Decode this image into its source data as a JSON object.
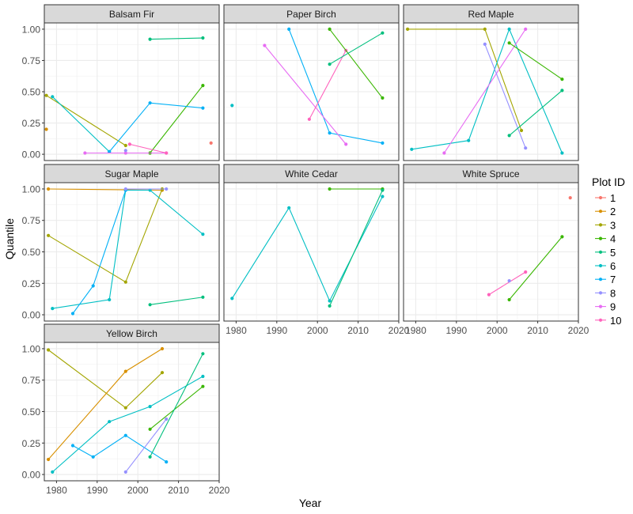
{
  "chart_data": {
    "type": "line",
    "facet_by": "species",
    "xlabel": "Year",
    "ylabel": "Quantile",
    "xlim": [
      1977,
      2020
    ],
    "ylim": [
      -0.05,
      1.05
    ],
    "x_ticks": [
      1980,
      1990,
      2000,
      2010,
      2020
    ],
    "y_ticks": [
      0.0,
      0.25,
      0.5,
      0.75,
      1.0
    ],
    "y_tick_labels": [
      "0.00",
      "0.25",
      "0.50",
      "0.75",
      "1.00"
    ],
    "grid": true,
    "legend": {
      "title": "Plot ID",
      "position": "right",
      "entries": [
        {
          "id": "1",
          "color": "#F8766D"
        },
        {
          "id": "2",
          "color": "#D89000"
        },
        {
          "id": "3",
          "color": "#A3A500"
        },
        {
          "id": "4",
          "color": "#39B600"
        },
        {
          "id": "5",
          "color": "#00BF7D"
        },
        {
          "id": "6",
          "color": "#00BFC4"
        },
        {
          "id": "7",
          "color": "#00B0F6"
        },
        {
          "id": "8",
          "color": "#9590FF"
        },
        {
          "id": "9",
          "color": "#E76BF3"
        },
        {
          "id": "10",
          "color": "#FF62BC"
        }
      ]
    },
    "panels": [
      {
        "title": "Balsam Fir",
        "series": [
          {
            "plot": "2",
            "points": [
              [
                1977.5,
                0.2
              ]
            ]
          },
          {
            "plot": "3",
            "points": [
              [
                1977.5,
                0.47
              ],
              [
                1997,
                0.07
              ]
            ]
          },
          {
            "plot": "4",
            "points": [
              [
                2003,
                0.01
              ],
              [
                2016,
                0.55
              ]
            ]
          },
          {
            "plot": "5",
            "points": [
              [
                2003,
                0.92
              ],
              [
                2016,
                0.93
              ]
            ]
          },
          {
            "plot": "6",
            "points": [
              [
                1979,
                0.46
              ],
              [
                1993,
                0.02
              ]
            ]
          },
          {
            "plot": "7",
            "points": [
              [
                1993,
                0.02
              ],
              [
                2003,
                0.41
              ],
              [
                2016,
                0.37
              ]
            ]
          },
          {
            "plot": "9",
            "points": [
              [
                1987,
                0.01
              ],
              [
                1997,
                0.01
              ],
              [
                2007,
                0.01
              ]
            ]
          },
          {
            "plot": "8",
            "points": [
              [
                1997,
                0.03
              ]
            ]
          },
          {
            "plot": "10",
            "points": [
              [
                1998,
                0.08
              ],
              [
                2007,
                0.01
              ]
            ]
          },
          {
            "plot": "1",
            "points": [
              [
                2018,
                0.09
              ]
            ]
          }
        ]
      },
      {
        "title": "Paper Birch",
        "series": [
          {
            "plot": "6",
            "points": [
              [
                1979,
                0.39
              ]
            ]
          },
          {
            "plot": "7",
            "points": [
              [
                1993,
                1.0
              ],
              [
                2003,
                0.17
              ],
              [
                2016,
                0.09
              ]
            ]
          },
          {
            "plot": "9",
            "points": [
              [
                1987,
                0.87
              ],
              [
                2007,
                0.08
              ]
            ]
          },
          {
            "plot": "10",
            "points": [
              [
                1998,
                0.28
              ],
              [
                2007,
                0.83
              ]
            ]
          },
          {
            "plot": "4",
            "points": [
              [
                2003,
                1.0
              ],
              [
                2016,
                0.45
              ]
            ]
          },
          {
            "plot": "5",
            "points": [
              [
                2003,
                0.72
              ],
              [
                2016,
                0.97
              ]
            ]
          }
        ]
      },
      {
        "title": "Red Maple",
        "series": [
          {
            "plot": "3",
            "points": [
              [
                1978,
                1.0
              ],
              [
                1997,
                1.0
              ],
              [
                2006,
                0.19
              ]
            ]
          },
          {
            "plot": "6",
            "points": [
              [
                1979,
                0.04
              ],
              [
                1993,
                0.11
              ],
              [
                2003,
                1.0
              ],
              [
                2016,
                0.01
              ]
            ]
          },
          {
            "plot": "9",
            "points": [
              [
                1987,
                0.01
              ],
              [
                2007,
                1.0
              ]
            ]
          },
          {
            "plot": "8",
            "points": [
              [
                1997,
                0.88
              ],
              [
                2007,
                0.05
              ]
            ]
          },
          {
            "plot": "4",
            "points": [
              [
                2003,
                0.89
              ],
              [
                2016,
                0.6
              ]
            ]
          },
          {
            "plot": "5",
            "points": [
              [
                2003,
                0.15
              ],
              [
                2016,
                0.51
              ]
            ]
          }
        ]
      },
      {
        "title": "Sugar Maple",
        "series": [
          {
            "plot": "2",
            "points": [
              [
                1978,
                1.0
              ],
              [
                2006,
                0.99
              ]
            ]
          },
          {
            "plot": "3",
            "points": [
              [
                1978,
                0.63
              ],
              [
                1997,
                0.26
              ],
              [
                2006,
                1.0
              ]
            ]
          },
          {
            "plot": "6",
            "points": [
              [
                1979,
                0.05
              ],
              [
                1993,
                0.12
              ],
              [
                1997,
                0.99
              ],
              [
                2003,
                0.99
              ],
              [
                2016,
                0.64
              ]
            ]
          },
          {
            "plot": "7",
            "points": [
              [
                1984,
                0.01
              ],
              [
                1989,
                0.23
              ],
              [
                1997,
                0.99
              ]
            ]
          },
          {
            "plot": "8",
            "points": [
              [
                1997,
                1.0
              ],
              [
                2007,
                1.0
              ]
            ]
          },
          {
            "plot": "5",
            "points": [
              [
                2003,
                0.08
              ],
              [
                2016,
                0.14
              ]
            ]
          }
        ]
      },
      {
        "title": "White Cedar",
        "series": [
          {
            "plot": "6",
            "points": [
              [
                1979,
                0.13
              ],
              [
                1993,
                0.85
              ],
              [
                2003,
                0.11
              ],
              [
                2016,
                0.94
              ]
            ]
          },
          {
            "plot": "4",
            "points": [
              [
                2003,
                1.0
              ],
              [
                2016,
                1.0
              ]
            ]
          },
          {
            "plot": "5",
            "points": [
              [
                2003,
                0.07
              ],
              [
                2016,
                0.99
              ]
            ]
          }
        ]
      },
      {
        "title": "White Spruce",
        "series": [
          {
            "plot": "1",
            "points": [
              [
                2018,
                0.93
              ]
            ]
          },
          {
            "plot": "4",
            "points": [
              [
                2003,
                0.12
              ],
              [
                2016,
                0.62
              ]
            ]
          },
          {
            "plot": "10",
            "points": [
              [
                1998,
                0.16
              ],
              [
                2007,
                0.34
              ]
            ]
          },
          {
            "plot": "8",
            "points": [
              [
                2003,
                0.27
              ]
            ]
          }
        ]
      },
      {
        "title": "Yellow Birch",
        "series": [
          {
            "plot": "3",
            "points": [
              [
                1978,
                0.99
              ],
              [
                1997,
                0.53
              ],
              [
                2006,
                0.81
              ]
            ]
          },
          {
            "plot": "2",
            "points": [
              [
                1978,
                0.12
              ],
              [
                1997,
                0.82
              ],
              [
                2006,
                1.0
              ]
            ]
          },
          {
            "plot": "6",
            "points": [
              [
                1979,
                0.02
              ],
              [
                1993,
                0.42
              ],
              [
                2003,
                0.54
              ],
              [
                2016,
                0.78
              ]
            ]
          },
          {
            "plot": "7",
            "points": [
              [
                1984,
                0.23
              ],
              [
                1989,
                0.14
              ],
              [
                1997,
                0.31
              ],
              [
                2007,
                0.1
              ]
            ]
          },
          {
            "plot": "4",
            "points": [
              [
                2003,
                0.36
              ],
              [
                2016,
                0.7
              ]
            ]
          },
          {
            "plot": "5",
            "points": [
              [
                2003,
                0.14
              ],
              [
                2016,
                0.96
              ]
            ]
          },
          {
            "plot": "8",
            "points": [
              [
                1997,
                0.02
              ],
              [
                2007,
                0.44
              ]
            ]
          }
        ]
      }
    ]
  }
}
